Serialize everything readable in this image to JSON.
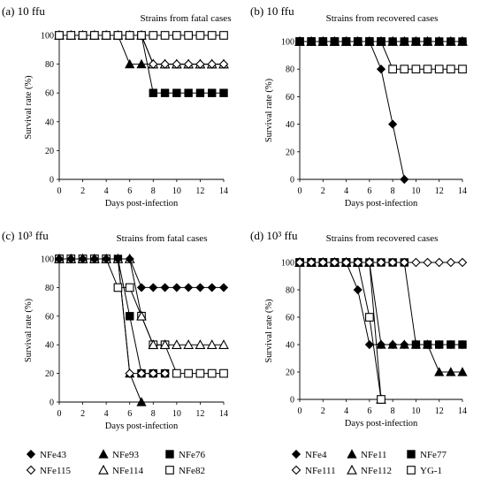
{
  "chart_data": [
    {
      "type": "line",
      "panel_label": "(a) 10 ffu",
      "title": "Strains from fatal cases",
      "xlabel": "Days post-infection",
      "ylabel": "Survival rate (%)",
      "xlim": [
        0,
        14
      ],
      "ylim": [
        0,
        100
      ],
      "xticks": [
        "0",
        "2",
        "4",
        "6",
        "8",
        "10",
        "12",
        "14"
      ],
      "yticks": [
        "0",
        "20",
        "40",
        "60",
        "80",
        "100"
      ],
      "series": [
        {
          "name": "NFe76",
          "marker": "square-filled",
          "x": [
            0,
            1,
            2,
            3,
            4,
            5,
            6,
            7,
            8,
            9,
            10,
            11,
            12,
            13,
            14
          ],
          "y": [
            100,
            100,
            100,
            100,
            100,
            100,
            100,
            100,
            60,
            60,
            60,
            60,
            60,
            60,
            60
          ]
        },
        {
          "name": "NFe93",
          "marker": "triangle-filled",
          "x": [
            0,
            1,
            2,
            3,
            4,
            5,
            6,
            7,
            8,
            9,
            10,
            11,
            12,
            13,
            14
          ],
          "y": [
            100,
            100,
            100,
            100,
            100,
            100,
            80,
            80,
            80,
            80,
            80,
            80,
            80,
            80,
            80
          ]
        },
        {
          "name": "NFe114",
          "marker": "triangle-open",
          "x": [
            0,
            1,
            2,
            3,
            4,
            5,
            6,
            7,
            8,
            9,
            10,
            11,
            12,
            13,
            14
          ],
          "y": [
            100,
            100,
            100,
            100,
            100,
            100,
            100,
            100,
            80,
            80,
            80,
            80,
            80,
            80,
            80
          ]
        },
        {
          "name": "NFe115",
          "marker": "diamond-open",
          "x": [
            0,
            1,
            2,
            3,
            4,
            5,
            6,
            7,
            8,
            9,
            10,
            11,
            12,
            13,
            14
          ],
          "y": [
            100,
            100,
            100,
            100,
            100,
            100,
            100,
            100,
            80,
            80,
            80,
            80,
            80,
            80,
            80
          ]
        },
        {
          "name": "NFe43",
          "marker": "diamond-filled",
          "x": [
            0,
            1,
            2,
            3,
            4,
            5,
            6,
            7,
            8,
            9,
            10,
            11,
            12,
            13,
            14
          ],
          "y": [
            100,
            100,
            100,
            100,
            100,
            100,
            100,
            100,
            100,
            100,
            100,
            100,
            100,
            100,
            100
          ]
        },
        {
          "name": "NFe82",
          "marker": "square-open",
          "x": [
            0,
            1,
            2,
            3,
            4,
            5,
            6,
            7,
            8,
            9,
            10,
            11,
            12,
            13,
            14
          ],
          "y": [
            100,
            100,
            100,
            100,
            100,
            100,
            100,
            100,
            100,
            100,
            100,
            100,
            100,
            100,
            100
          ]
        }
      ]
    },
    {
      "type": "line",
      "panel_label": "(b) 10 ffu",
      "title": "Strains from recovered cases",
      "xlabel": "Days post-infection",
      "ylabel": "Survival rate (%)",
      "xlim": [
        0,
        14
      ],
      "ylim": [
        0,
        100
      ],
      "xticks": [
        "0",
        "2",
        "4",
        "6",
        "8",
        "10",
        "12",
        "14"
      ],
      "yticks": [
        "0",
        "20",
        "40",
        "60",
        "80",
        "100"
      ],
      "series": [
        {
          "name": "NFe4",
          "marker": "diamond-filled",
          "x": [
            0,
            1,
            2,
            3,
            4,
            5,
            6,
            7,
            8,
            9
          ],
          "y": [
            100,
            100,
            100,
            100,
            100,
            100,
            100,
            80,
            40,
            0
          ]
        },
        {
          "name": "YG-1",
          "marker": "square-open",
          "x": [
            0,
            1,
            2,
            3,
            4,
            5,
            6,
            7,
            8,
            9,
            10,
            11,
            12,
            13,
            14
          ],
          "y": [
            100,
            100,
            100,
            100,
            100,
            100,
            100,
            100,
            80,
            80,
            80,
            80,
            80,
            80,
            80
          ]
        },
        {
          "name": "NFe111",
          "marker": "diamond-open",
          "x": [
            0,
            1,
            2,
            3,
            4,
            5,
            6,
            7,
            8,
            9,
            10,
            11,
            12,
            13,
            14
          ],
          "y": [
            100,
            100,
            100,
            100,
            100,
            100,
            100,
            100,
            100,
            100,
            100,
            100,
            100,
            100,
            100
          ]
        },
        {
          "name": "NFe112",
          "marker": "triangle-open",
          "x": [
            0,
            1,
            2,
            3,
            4,
            5,
            6,
            7,
            8,
            9,
            10,
            11,
            12,
            13,
            14
          ],
          "y": [
            100,
            100,
            100,
            100,
            100,
            100,
            100,
            100,
            100,
            100,
            100,
            100,
            100,
            100,
            100
          ]
        },
        {
          "name": "NFe77",
          "marker": "square-filled",
          "x": [
            0,
            1,
            2,
            3,
            4,
            5,
            6,
            7,
            8,
            9,
            10,
            11,
            12,
            13,
            14
          ],
          "y": [
            100,
            100,
            100,
            100,
            100,
            100,
            100,
            100,
            100,
            100,
            100,
            100,
            100,
            100,
            100
          ]
        },
        {
          "name": "NFe11",
          "marker": "triangle-filled",
          "x": [
            0,
            1,
            2,
            3,
            4,
            5,
            6,
            7,
            8,
            9,
            10,
            11,
            12,
            13,
            14
          ],
          "y": [
            100,
            100,
            100,
            100,
            100,
            100,
            100,
            100,
            100,
            100,
            100,
            100,
            100,
            100,
            100
          ]
        }
      ]
    },
    {
      "type": "line",
      "panel_label": "(c) 10³ ffu",
      "title": "Strains from fatal cases",
      "xlabel": "Days post-infection",
      "ylabel": "Survival rate (%)",
      "xlim": [
        0,
        14
      ],
      "ylim": [
        0,
        100
      ],
      "xticks": [
        "0",
        "2",
        "4",
        "6",
        "8",
        "10",
        "12",
        "14"
      ],
      "yticks": [
        "0",
        "20",
        "40",
        "60",
        "80",
        "100"
      ],
      "series": [
        {
          "name": "NFe93",
          "marker": "triangle-filled",
          "x": [
            0,
            1,
            2,
            3,
            4,
            5,
            6,
            7
          ],
          "y": [
            100,
            100,
            100,
            100,
            100,
            100,
            20,
            0
          ]
        },
        {
          "name": "NFe76",
          "marker": "square-filled",
          "x": [
            0,
            1,
            2,
            3,
            4,
            5,
            6,
            7,
            8,
            9
          ],
          "y": [
            100,
            100,
            100,
            100,
            100,
            100,
            60,
            20,
            20,
            20
          ]
        },
        {
          "name": "NFe115",
          "marker": "diamond-open",
          "x": [
            0,
            1,
            2,
            3,
            4,
            5,
            6,
            7,
            8,
            9
          ],
          "y": [
            100,
            100,
            100,
            100,
            100,
            100,
            20,
            20,
            20,
            20
          ]
        },
        {
          "name": "NFe82",
          "marker": "square-open",
          "x": [
            0,
            1,
            2,
            3,
            4,
            5,
            6,
            7,
            8,
            9,
            10,
            11,
            12,
            13,
            14
          ],
          "y": [
            100,
            100,
            100,
            100,
            100,
            80,
            80,
            60,
            40,
            40,
            20,
            20,
            20,
            20,
            20
          ]
        },
        {
          "name": "NFe114",
          "marker": "triangle-open",
          "x": [
            0,
            1,
            2,
            3,
            4,
            5,
            6,
            7,
            8,
            9,
            10,
            11,
            12,
            13,
            14
          ],
          "y": [
            100,
            100,
            100,
            100,
            100,
            100,
            100,
            60,
            40,
            40,
            40,
            40,
            40,
            40,
            40
          ]
        },
        {
          "name": "NFe43",
          "marker": "diamond-filled",
          "x": [
            0,
            1,
            2,
            3,
            4,
            5,
            6,
            7,
            8,
            9,
            10,
            11,
            12,
            13,
            14
          ],
          "y": [
            100,
            100,
            100,
            100,
            100,
            100,
            100,
            80,
            80,
            80,
            80,
            80,
            80,
            80,
            80
          ]
        }
      ]
    },
    {
      "type": "line",
      "panel_label": "(d) 10³ ffu",
      "title": "Strains from recovered cases",
      "xlabel": "Days post-infection",
      "ylabel": "Survival rate (%)",
      "xlim": [
        0,
        14
      ],
      "ylim": [
        0,
        100
      ],
      "xticks": [
        "0",
        "2",
        "4",
        "6",
        "8",
        "10",
        "12",
        "14"
      ],
      "yticks": [
        "0",
        "20",
        "40",
        "60",
        "80",
        "100"
      ],
      "series": [
        {
          "name": "NFe112",
          "marker": "triangle-open",
          "x": [
            0,
            1,
            2,
            3,
            4,
            5,
            6,
            7
          ],
          "y": [
            100,
            100,
            100,
            100,
            100,
            100,
            100,
            0
          ]
        },
        {
          "name": "YG-1",
          "marker": "square-open",
          "x": [
            0,
            1,
            2,
            3,
            4,
            5,
            6,
            7
          ],
          "y": [
            100,
            100,
            100,
            100,
            100,
            100,
            60,
            0
          ]
        },
        {
          "name": "NFe4",
          "marker": "diamond-filled",
          "x": [
            0,
            1,
            2,
            3,
            4,
            5,
            6,
            7,
            8,
            9,
            10,
            11,
            12,
            13,
            14
          ],
          "y": [
            100,
            100,
            100,
            100,
            100,
            80,
            40,
            40,
            40,
            40,
            40,
            40,
            40,
            40,
            40
          ]
        },
        {
          "name": "NFe11",
          "marker": "triangle-filled",
          "x": [
            0,
            1,
            2,
            3,
            4,
            5,
            6,
            7,
            8,
            9,
            10,
            11,
            12,
            13,
            14
          ],
          "y": [
            100,
            100,
            100,
            100,
            100,
            100,
            100,
            40,
            40,
            40,
            40,
            40,
            20,
            20,
            20
          ]
        },
        {
          "name": "NFe77",
          "marker": "square-filled",
          "x": [
            0,
            1,
            2,
            3,
            4,
            5,
            6,
            7,
            8,
            9,
            10,
            11,
            12,
            13,
            14
          ],
          "y": [
            100,
            100,
            100,
            100,
            100,
            100,
            100,
            100,
            100,
            100,
            40,
            40,
            40,
            40,
            40
          ]
        },
        {
          "name": "NFe111",
          "marker": "diamond-open",
          "x": [
            0,
            1,
            2,
            3,
            4,
            5,
            6,
            7,
            8,
            9,
            10,
            11,
            12,
            13,
            14
          ],
          "y": [
            100,
            100,
            100,
            100,
            100,
            100,
            100,
            100,
            100,
            100,
            100,
            100,
            100,
            100,
            100
          ]
        }
      ]
    }
  ],
  "legends": [
    {
      "rows": [
        [
          {
            "label": "NFe43",
            "marker": "diamond-filled"
          },
          {
            "label": "NFe93",
            "marker": "triangle-filled"
          },
          {
            "label": "NFe76",
            "marker": "square-filled"
          }
        ],
        [
          {
            "label": "NFe115",
            "marker": "diamond-open"
          },
          {
            "label": "NFe114",
            "marker": "triangle-open"
          },
          {
            "label": "NFe82",
            "marker": "square-open"
          }
        ]
      ]
    },
    {
      "rows": [
        [
          {
            "label": "NFe4",
            "marker": "diamond-filled"
          },
          {
            "label": "NFe11",
            "marker": "triangle-filled"
          },
          {
            "label": "NFe77",
            "marker": "square-filled"
          }
        ],
        [
          {
            "label": "NFe111",
            "marker": "diamond-open"
          },
          {
            "label": "NFe112",
            "marker": "triangle-open"
          },
          {
            "label": "YG-1",
            "marker": "square-open"
          }
        ]
      ]
    }
  ]
}
